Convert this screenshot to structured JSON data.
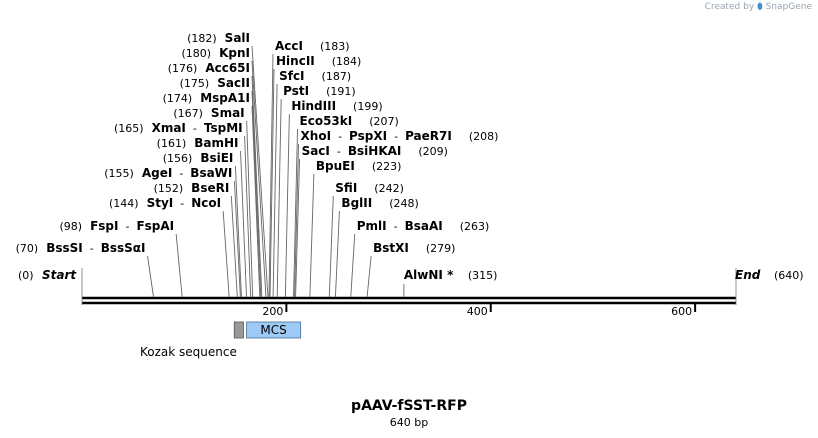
{
  "credit": {
    "prefix": "Created by",
    "brand": "SnapGene",
    "brand_icon": "snapgene-logo-icon"
  },
  "plasmid": {
    "name": "pAAV-fSST-RFP",
    "length_label": "640 bp",
    "length": 640
  },
  "ruler": {
    "ticks": [
      200,
      400,
      600
    ]
  },
  "left_sites": [
    {
      "pos": "(182)",
      "names": [
        "SalI"
      ],
      "bp": 182
    },
    {
      "pos": "(180)",
      "names": [
        "KpnI"
      ],
      "bp": 180
    },
    {
      "pos": "(176)",
      "names": [
        "Acc65I"
      ],
      "bp": 176
    },
    {
      "pos": "(175)",
      "names": [
        "SacII"
      ],
      "bp": 175
    },
    {
      "pos": "(174)",
      "names": [
        "MspA1I"
      ],
      "bp": 174
    },
    {
      "pos": "(167)",
      "names": [
        "SmaI"
      ],
      "bp": 167
    },
    {
      "pos": "(165)",
      "names": [
        "XmaI",
        "TspMI"
      ],
      "bp": 165
    },
    {
      "pos": "(161)",
      "names": [
        "BamHI"
      ],
      "bp": 161
    },
    {
      "pos": "(156)",
      "names": [
        "BsiEI"
      ],
      "bp": 156
    },
    {
      "pos": "(155)",
      "names": [
        "AgeI",
        "BsaWI"
      ],
      "bp": 155
    },
    {
      "pos": "(152)",
      "names": [
        "BseRI"
      ],
      "bp": 152
    },
    {
      "pos": "(144)",
      "names": [
        "StyI",
        "NcoI"
      ],
      "bp": 144
    },
    {
      "pos": "(98)",
      "names": [
        "FspI",
        "FspAI"
      ],
      "bp": 98
    },
    {
      "pos": "(70)",
      "names": [
        "BssSI",
        "BssSαI"
      ],
      "bp": 70
    }
  ],
  "right_sites": [
    {
      "pos": "(183)",
      "names": [
        "AccI"
      ],
      "bp": 183
    },
    {
      "pos": "(184)",
      "names": [
        "HincII"
      ],
      "bp": 184
    },
    {
      "pos": "(187)",
      "names": [
        "SfcI"
      ],
      "bp": 187
    },
    {
      "pos": "(191)",
      "names": [
        "PstI"
      ],
      "bp": 191
    },
    {
      "pos": "(199)",
      "names": [
        "HindIII"
      ],
      "bp": 199
    },
    {
      "pos": "(207)",
      "names": [
        "Eco53kI"
      ],
      "bp": 207
    },
    {
      "pos": "(208)",
      "names": [
        "XhoI",
        "PspXI",
        "PaeR7I"
      ],
      "bp": 208
    },
    {
      "pos": "(209)",
      "names": [
        "SacI",
        "BsiHKAI"
      ],
      "bp": 209
    },
    {
      "pos": "(223)",
      "names": [
        "BpuEI"
      ],
      "bp": 223
    },
    {
      "pos": "(242)",
      "names": [
        "SfiI"
      ],
      "bp": 242
    },
    {
      "pos": "(248)",
      "names": [
        "BglII"
      ],
      "bp": 248
    },
    {
      "pos": "(263)",
      "names": [
        "PmlI",
        "BsaAI"
      ],
      "bp": 263
    },
    {
      "pos": "(279)",
      "names": [
        "BstXI"
      ],
      "bp": 279
    }
  ],
  "ends": {
    "start": {
      "label": "Start",
      "pos": "(0)"
    },
    "end": {
      "label": "End",
      "pos": "(640)"
    },
    "alwn": {
      "label": "AlwNI *",
      "pos": "(315)",
      "bp": 315
    }
  },
  "features": {
    "kozak": {
      "label": "Kozak sequence",
      "color": "#999999",
      "start": 149,
      "end": 158
    },
    "mcs": {
      "label": "MCS",
      "color": "#9ecbf5",
      "start": 161,
      "end": 214
    }
  }
}
